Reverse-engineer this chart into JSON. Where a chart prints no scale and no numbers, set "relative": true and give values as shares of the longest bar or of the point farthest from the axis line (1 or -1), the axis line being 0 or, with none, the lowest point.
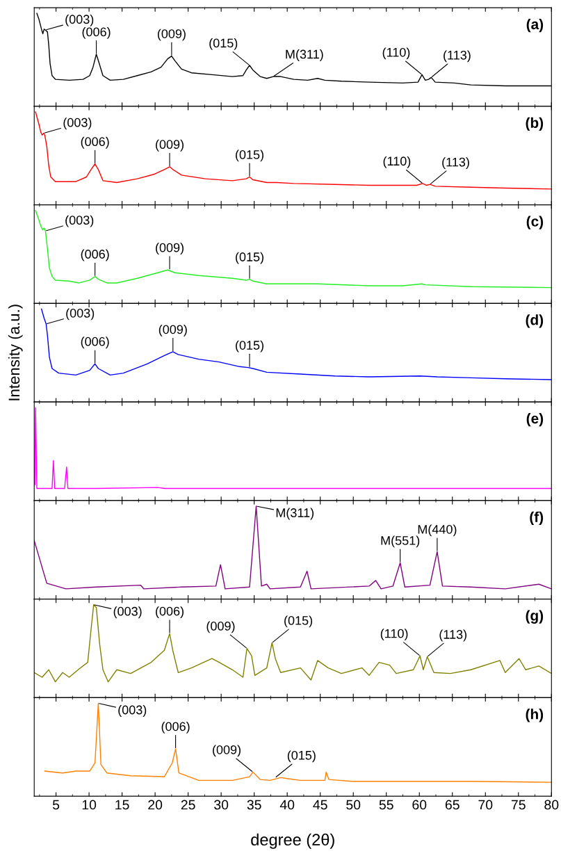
{
  "chart_data": [
    {
      "type": "line",
      "title": "(a)",
      "relative": true,
      "xlim": [
        1.7,
        80
      ],
      "xticks": [
        5,
        10,
        15,
        20,
        25,
        30,
        35,
        40,
        45,
        50,
        55,
        60,
        65,
        70,
        75,
        80
      ],
      "tick_labels": false,
      "grid": false,
      "x": [
        2.1,
        2.4,
        2.8,
        3.0,
        3.2,
        3.4,
        3.7,
        3.9,
        4.1,
        4.4,
        4.9,
        7.0,
        9.1,
        10.1,
        10.6,
        11.1,
        11.5,
        12.1,
        13.2,
        15.2,
        17.3,
        19.4,
        20.9,
        21.9,
        22.5,
        23.0,
        24.0,
        25.5,
        28.6,
        31.7,
        33.3,
        33.8,
        34.3,
        34.8,
        35.9,
        36.9,
        37.9,
        39.0,
        41.0,
        43.1,
        44.6,
        45.7,
        48.2,
        52.4,
        57.5,
        59.8,
        60.4,
        60.9,
        61.4,
        61.8,
        62.4,
        65.3,
        67.8,
        73.0,
        80.0
      ],
      "series": [
        {
          "color": "#000000",
          "values": [
            1.0,
            0.94,
            0.83,
            0.78,
            0.83,
            0.82,
            0.8,
            0.66,
            0.46,
            0.33,
            0.29,
            0.28,
            0.29,
            0.33,
            0.42,
            0.56,
            0.47,
            0.33,
            0.28,
            0.29,
            0.33,
            0.37,
            0.42,
            0.51,
            0.54,
            0.49,
            0.4,
            0.36,
            0.34,
            0.32,
            0.33,
            0.39,
            0.44,
            0.39,
            0.32,
            0.3,
            0.32,
            0.32,
            0.29,
            0.28,
            0.3,
            0.28,
            0.27,
            0.26,
            0.25,
            0.26,
            0.34,
            0.28,
            0.29,
            0.31,
            0.26,
            0.25,
            0.23,
            0.22,
            0.22
          ]
        }
      ],
      "annotations": [
        {
          "text": "(003)",
          "x": 3.4,
          "y": 0.82
        },
        {
          "text": "(006)",
          "x": 11.1,
          "y": 0.56
        },
        {
          "text": "(009)",
          "x": 22.5,
          "y": 0.54
        },
        {
          "text": "(015)",
          "x": 34.3,
          "y": 0.44
        },
        {
          "text": "M(311)",
          "x": 37.9,
          "y": 0.32
        },
        {
          "text": "(110)",
          "x": 60.4,
          "y": 0.34
        },
        {
          "text": "(113)",
          "x": 61.8,
          "y": 0.31
        }
      ]
    },
    {
      "type": "line",
      "title": "(b)",
      "relative": true,
      "xlim": [
        1.7,
        80
      ],
      "xticks": [
        5,
        10,
        15,
        20,
        25,
        30,
        35,
        40,
        45,
        50,
        55,
        60,
        65,
        70,
        75,
        80
      ],
      "tick_labels": false,
      "grid": false,
      "x": [
        1.9,
        2.4,
        2.7,
        2.9,
        3.1,
        3.3,
        3.6,
        3.9,
        4.2,
        4.9,
        8.0,
        9.6,
        10.3,
        10.9,
        11.4,
        12.1,
        14.2,
        17.3,
        19.9,
        21.4,
        22.2,
        22.7,
        24.0,
        27.6,
        31.7,
        33.8,
        34.3,
        34.8,
        36.9,
        38.4,
        41.0,
        47.2,
        52.4,
        59.6,
        60.5,
        61.1,
        61.6,
        62.4,
        67.8,
        73.0,
        80.0
      ],
      "series": [
        {
          "color": "#ff0000",
          "values": [
            1.0,
            0.87,
            0.78,
            0.75,
            0.77,
            0.75,
            0.63,
            0.42,
            0.3,
            0.25,
            0.25,
            0.3,
            0.38,
            0.44,
            0.38,
            0.26,
            0.24,
            0.28,
            0.33,
            0.38,
            0.41,
            0.38,
            0.32,
            0.28,
            0.26,
            0.28,
            0.3,
            0.27,
            0.24,
            0.24,
            0.23,
            0.22,
            0.21,
            0.21,
            0.23,
            0.21,
            0.22,
            0.2,
            0.19,
            0.18,
            0.17
          ]
        }
      ],
      "annotations": [
        {
          "text": "(003)",
          "x": 3.1,
          "y": 0.77
        },
        {
          "text": "(006)",
          "x": 10.9,
          "y": 0.44
        },
        {
          "text": "(009)",
          "x": 22.2,
          "y": 0.41
        },
        {
          "text": "(015)",
          "x": 34.3,
          "y": 0.3
        },
        {
          "text": "(110)",
          "x": 60.5,
          "y": 0.23
        },
        {
          "text": "(113)",
          "x": 61.6,
          "y": 0.22
        }
      ]
    },
    {
      "type": "line",
      "title": "(c)",
      "relative": true,
      "xlim": [
        1.7,
        80
      ],
      "xticks": [
        5,
        10,
        15,
        20,
        25,
        30,
        35,
        40,
        45,
        50,
        55,
        60,
        65,
        70,
        75,
        80
      ],
      "tick_labels": false,
      "grid": false,
      "x": [
        1.9,
        2.4,
        2.7,
        3.0,
        3.2,
        3.4,
        3.7,
        4.0,
        4.4,
        4.9,
        7.0,
        8.5,
        10.1,
        10.9,
        11.4,
        12.7,
        14.2,
        17.3,
        20.4,
        21.9,
        23.0,
        26.6,
        31.7,
        33.8,
        34.3,
        34.8,
        36.9,
        42.0,
        44.6,
        52.4,
        57.5,
        60.4,
        60.9,
        67.8,
        80.0
      ],
      "series": [
        {
          "color": "#22ee22",
          "values": [
            1.0,
            0.9,
            0.83,
            0.79,
            0.81,
            0.78,
            0.59,
            0.38,
            0.29,
            0.25,
            0.24,
            0.22,
            0.25,
            0.29,
            0.26,
            0.22,
            0.22,
            0.27,
            0.33,
            0.36,
            0.33,
            0.3,
            0.27,
            0.25,
            0.26,
            0.24,
            0.21,
            0.21,
            0.21,
            0.19,
            0.19,
            0.21,
            0.2,
            0.18,
            0.17
          ]
        }
      ],
      "annotations": [
        {
          "text": "(003)",
          "x": 3.4,
          "y": 0.78
        },
        {
          "text": "(006)",
          "x": 10.9,
          "y": 0.29
        },
        {
          "text": "(009)",
          "x": 22.2,
          "y": 0.36
        },
        {
          "text": "(015)",
          "x": 34.3,
          "y": 0.26
        }
      ]
    },
    {
      "type": "line",
      "title": "(d)",
      "relative": true,
      "ylabel": "Intensity (a.u.)",
      "xlim": [
        1.7,
        80
      ],
      "xticks": [
        5,
        10,
        15,
        20,
        25,
        30,
        35,
        40,
        45,
        50,
        55,
        60,
        65,
        70,
        75,
        80
      ],
      "tick_labels": false,
      "grid": false,
      "x": [
        2.8,
        3.2,
        3.5,
        3.7,
        4.0,
        4.4,
        5.4,
        8.0,
        10.1,
        10.9,
        11.4,
        13.2,
        15.2,
        18.8,
        21.4,
        22.7,
        23.5,
        26.6,
        29.7,
        32.8,
        34.1,
        34.8,
        36.9,
        42.0,
        47.2,
        52.4,
        60.1,
        62.7,
        67.8,
        73.0,
        80.0
      ],
      "series": [
        {
          "color": "#0000ff",
          "values": [
            1.0,
            0.9,
            0.84,
            0.72,
            0.48,
            0.36,
            0.31,
            0.29,
            0.34,
            0.41,
            0.36,
            0.29,
            0.31,
            0.41,
            0.5,
            0.54,
            0.51,
            0.46,
            0.43,
            0.38,
            0.37,
            0.36,
            0.32,
            0.3,
            0.28,
            0.27,
            0.28,
            0.27,
            0.26,
            0.25,
            0.24
          ]
        }
      ],
      "annotations": [
        {
          "text": "(003)",
          "x": 3.5,
          "y": 0.84
        },
        {
          "text": "(006)",
          "x": 10.9,
          "y": 0.41
        },
        {
          "text": "(009)",
          "x": 22.7,
          "y": 0.54
        },
        {
          "text": "(015)",
          "x": 34.3,
          "y": 0.37
        }
      ]
    },
    {
      "type": "line",
      "title": "(e)",
      "relative": true,
      "xlim": [
        1.7,
        80
      ],
      "xticks": [
        5,
        10,
        15,
        20,
        25,
        30,
        35,
        40,
        45,
        50,
        55,
        60,
        65,
        70,
        75,
        80
      ],
      "tick_labels": false,
      "grid": false,
      "x": [
        1.8,
        1.9,
        2.1,
        4.4,
        4.6,
        4.8,
        6.3,
        6.6,
        6.8,
        11.1,
        20.4,
        21.4,
        80.0
      ],
      "series": [
        {
          "color": "#ff00ff",
          "values": [
            0.17,
            1.0,
            0.13,
            0.13,
            0.43,
            0.13,
            0.13,
            0.36,
            0.13,
            0.13,
            0.14,
            0.13,
            0.13
          ]
        }
      ]
    },
    {
      "type": "line",
      "title": "(f)",
      "relative": true,
      "xlim": [
        1.7,
        80
      ],
      "xticks": [
        5,
        10,
        15,
        20,
        25,
        30,
        35,
        40,
        45,
        50,
        55,
        60,
        65,
        70,
        75,
        80
      ],
      "tick_labels": false,
      "grid": false,
      "x": [
        1.7,
        3.6,
        6.5,
        11.1,
        17.8,
        18.3,
        24.0,
        29.2,
        29.9,
        30.6,
        34.3,
        35.3,
        36.1,
        36.9,
        37.4,
        42.0,
        43.0,
        43.6,
        52.4,
        53.4,
        54.2,
        56.0,
        57.1,
        57.8,
        61.6,
        62.7,
        63.5,
        67.8,
        73.0,
        78.1,
        80.0
      ],
      "series": [
        {
          "color": "#800080",
          "values": [
            0.63,
            0.17,
            0.11,
            0.13,
            0.15,
            0.11,
            0.13,
            0.14,
            0.37,
            0.11,
            0.13,
            1.0,
            0.14,
            0.16,
            0.11,
            0.13,
            0.3,
            0.11,
            0.14,
            0.2,
            0.11,
            0.14,
            0.39,
            0.13,
            0.15,
            0.51,
            0.14,
            0.13,
            0.11,
            0.16,
            0.11
          ]
        }
      ],
      "annotations": [
        {
          "text": "M(311)",
          "x": 35.3,
          "y": 1.0
        },
        {
          "text": "M(551)",
          "x": 57.1,
          "y": 0.39
        },
        {
          "text": "M(440)",
          "x": 62.7,
          "y": 0.51
        }
      ]
    },
    {
      "type": "line",
      "title": "(g)",
      "relative": true,
      "xlim": [
        1.7,
        80
      ],
      "xticks": [
        5,
        10,
        15,
        20,
        25,
        30,
        35,
        40,
        45,
        50,
        55,
        60,
        65,
        70,
        75,
        80
      ],
      "tick_labels": false,
      "grid": false,
      "x": [
        1.7,
        2.9,
        3.9,
        4.9,
        6.0,
        7.0,
        8.5,
        9.8,
        10.3,
        10.7,
        11.1,
        11.6,
        12.1,
        12.9,
        14.2,
        16.3,
        19.4,
        21.4,
        22.2,
        22.7,
        23.5,
        25.5,
        28.6,
        29.7,
        31.7,
        33.3,
        33.9,
        34.6,
        35.1,
        36.9,
        37.7,
        38.2,
        39.0,
        42.0,
        43.6,
        44.6,
        46.2,
        48.2,
        51.3,
        52.4,
        53.9,
        55.5,
        56.5,
        59.1,
        60.1,
        60.6,
        61.2,
        62.2,
        64.7,
        67.8,
        72.2,
        73.0,
        75.1,
        76.1,
        78.1,
        80.0
      ],
      "series": [
        {
          "color": "#808000",
          "values": [
            0.27,
            0.22,
            0.3,
            0.17,
            0.27,
            0.22,
            0.31,
            0.38,
            0.73,
            1.0,
            0.97,
            0.58,
            0.3,
            0.17,
            0.3,
            0.26,
            0.38,
            0.51,
            0.69,
            0.5,
            0.27,
            0.32,
            0.42,
            0.38,
            0.3,
            0.22,
            0.53,
            0.45,
            0.24,
            0.32,
            0.59,
            0.42,
            0.27,
            0.32,
            0.19,
            0.4,
            0.32,
            0.26,
            0.32,
            0.24,
            0.38,
            0.35,
            0.26,
            0.3,
            0.45,
            0.3,
            0.44,
            0.27,
            0.26,
            0.3,
            0.4,
            0.27,
            0.42,
            0.3,
            0.34,
            0.26
          ]
        }
      ],
      "annotations": [
        {
          "text": "(003)",
          "x": 10.7,
          "y": 1.0
        },
        {
          "text": "(006)",
          "x": 22.2,
          "y": 0.69
        },
        {
          "text": "(009)",
          "x": 33.9,
          "y": 0.53
        },
        {
          "text": "(015)",
          "x": 37.7,
          "y": 0.59
        },
        {
          "text": "(110)",
          "x": 60.1,
          "y": 0.45
        },
        {
          "text": "(113)",
          "x": 61.2,
          "y": 0.44
        }
      ]
    },
    {
      "type": "line",
      "title": "(h)",
      "relative": true,
      "xlabel": "degree (2θ)",
      "xlim": [
        1.7,
        80
      ],
      "xticks": [
        5,
        10,
        15,
        20,
        25,
        30,
        35,
        40,
        45,
        50,
        55,
        60,
        65,
        70,
        75,
        80
      ],
      "tick_labels": "x",
      "grid": false,
      "x": [
        3.3,
        6.0,
        8.0,
        10.1,
        10.9,
        11.4,
        11.8,
        12.7,
        16.3,
        21.4,
        22.6,
        23.1,
        23.6,
        26.6,
        31.7,
        34.3,
        34.8,
        35.9,
        37.4,
        39.0,
        40.0,
        42.0,
        45.7,
        45.9,
        46.3,
        49.8,
        57.5,
        67.8,
        80.0
      ],
      "series": [
        {
          "color": "#ff8000",
          "values": [
            0.27,
            0.25,
            0.27,
            0.27,
            0.36,
            1.0,
            0.34,
            0.25,
            0.22,
            0.21,
            0.36,
            0.51,
            0.25,
            0.17,
            0.17,
            0.21,
            0.26,
            0.18,
            0.17,
            0.2,
            0.19,
            0.17,
            0.17,
            0.26,
            0.18,
            0.16,
            0.16,
            0.16,
            0.15
          ]
        }
      ],
      "annotations": [
        {
          "text": "(003)",
          "x": 11.4,
          "y": 1.0
        },
        {
          "text": "(006)",
          "x": 23.1,
          "y": 0.51
        },
        {
          "text": "(009)",
          "x": 34.8,
          "y": 0.26
        },
        {
          "text": "(015)",
          "x": 38.2,
          "y": 0.2
        }
      ]
    }
  ]
}
